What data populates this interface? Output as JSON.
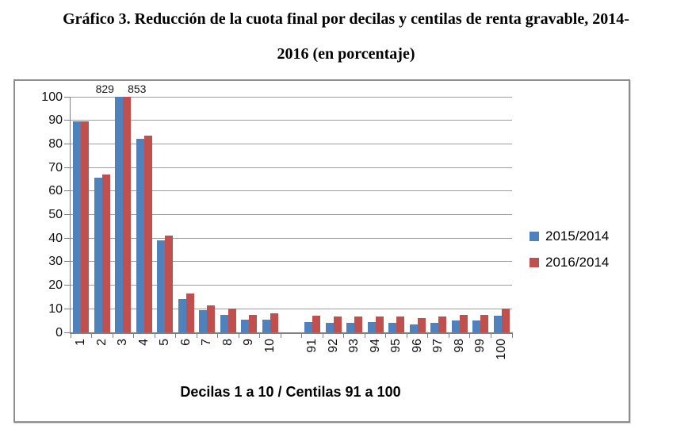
{
  "title": {
    "line1": "Gráfico 3. Reducción de la cuota final por decilas y centilas de renta gravable, 2014-",
    "line2": "2016 (en porcentaje)"
  },
  "chart_data": {
    "type": "bar",
    "title": "Gráfico 3. Reducción de la cuota final por decilas y centilas de renta gravable, 2014-2016 (en porcentaje)",
    "categories": [
      "1",
      "2",
      "3",
      "4",
      "5",
      "6",
      "7",
      "8",
      "9",
      "10",
      "91",
      "92",
      "93",
      "94",
      "95",
      "96",
      "97",
      "98",
      "99",
      "100"
    ],
    "series": [
      {
        "name": "2015/2014",
        "color": "#4F81BD",
        "values": [
          89.5,
          65.5,
          829,
          82,
          39,
          14,
          9.5,
          7.5,
          5.5,
          5.5,
          4.5,
          4,
          4,
          4.3,
          4,
          3.5,
          4,
          5,
          5,
          7
        ]
      },
      {
        "name": "2016/2014",
        "color": "#C0504D",
        "values": [
          89.5,
          67,
          853,
          83.5,
          41,
          16.5,
          11.5,
          10,
          7.5,
          8,
          7,
          6.8,
          6.7,
          6.8,
          6.8,
          6,
          6.7,
          7.5,
          7.5,
          10
        ]
      }
    ],
    "data_labels": [
      {
        "category": "3",
        "series_index": 0,
        "text": "829"
      },
      {
        "category": "3",
        "series_index": 1,
        "text": "853"
      }
    ],
    "xlabel": "Decilas 1 a 10 / Centilas 91 a 100",
    "ylabel": "",
    "ylim": [
      0,
      100
    ],
    "ytick_step": 10,
    "yticks": [
      "0",
      "10",
      "20",
      "30",
      "40",
      "50",
      "60",
      "70",
      "80",
      "90",
      "100"
    ],
    "values_clipped_at": 100,
    "gap_after_index": 9,
    "legend_position": "right",
    "grid": true
  }
}
